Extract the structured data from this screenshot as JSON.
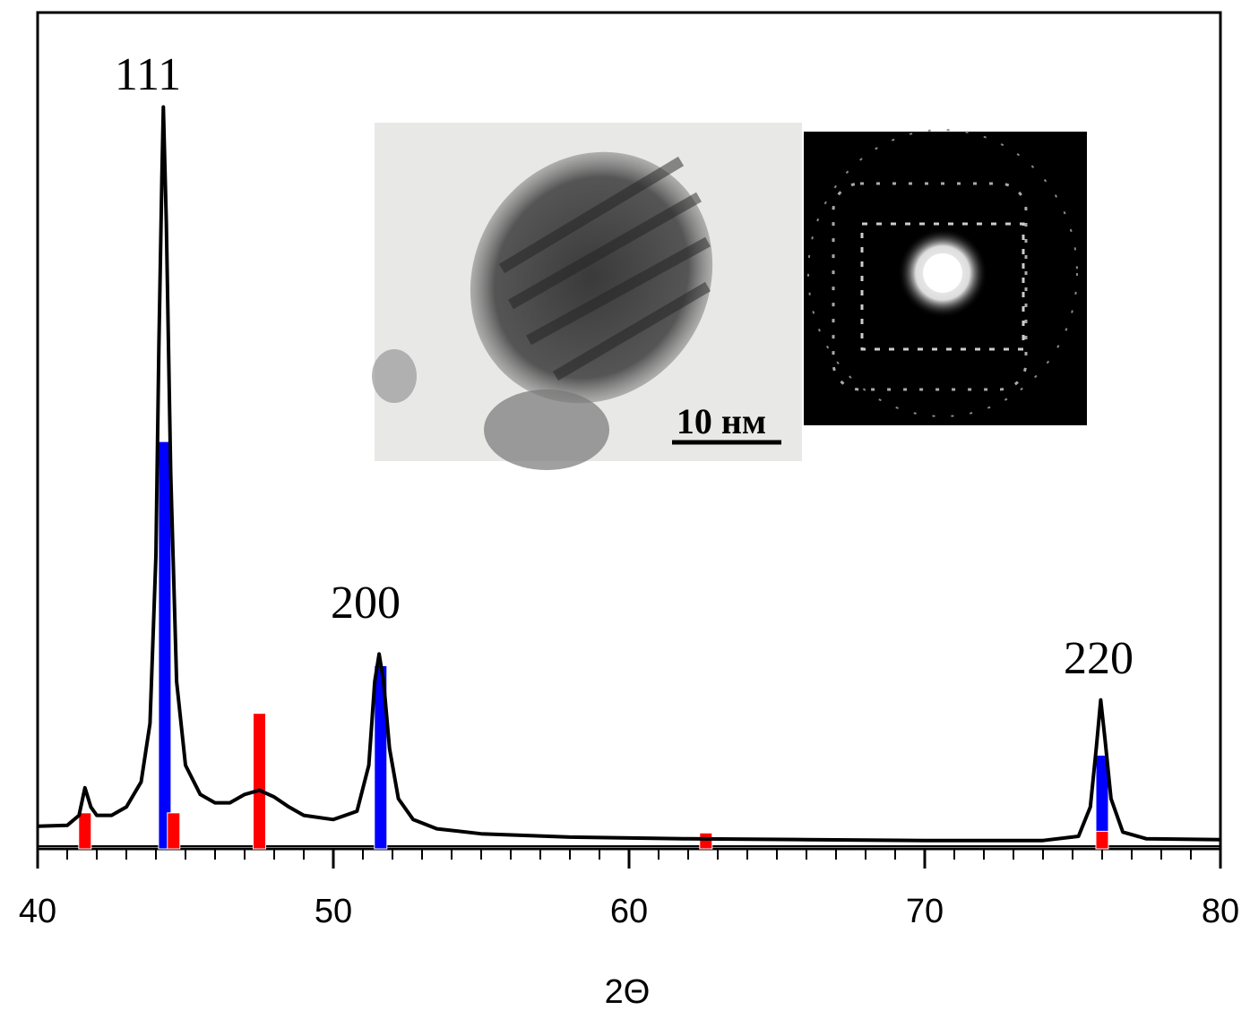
{
  "chart_data": {
    "type": "line",
    "xlabel": "2Θ",
    "annotations": [
      "111",
      "200",
      "220"
    ],
    "inset_label": "10 нм",
    "xlim": [
      40,
      80
    ],
    "xticks": [
      40,
      50,
      60,
      70,
      80
    ],
    "xminor_ticks": [
      41,
      42,
      43,
      44,
      45,
      46,
      47,
      48,
      49,
      51,
      52,
      53,
      54,
      55,
      56,
      57,
      58,
      59,
      61,
      62,
      63,
      64,
      65,
      66,
      67,
      68,
      69,
      71,
      72,
      73,
      74,
      75,
      76,
      77,
      78,
      79
    ],
    "ylim": [
      0,
      100
    ],
    "x": [
      40.0,
      41.0,
      41.4,
      41.6,
      41.8,
      42.0,
      42.5,
      43.0,
      43.5,
      43.8,
      44.0,
      44.1,
      44.2,
      44.25,
      44.35,
      44.5,
      44.7,
      45.0,
      45.5,
      46.0,
      46.5,
      47.0,
      47.5,
      48.0,
      48.5,
      49.0,
      50.0,
      50.8,
      51.2,
      51.4,
      51.55,
      51.7,
      51.9,
      52.2,
      52.7,
      53.5,
      55,
      58,
      62,
      66,
      70,
      74,
      75.2,
      75.6,
      75.8,
      75.95,
      76.1,
      76.3,
      76.7,
      77.5,
      80
    ],
    "series": [
      {
        "color": "#000000",
        "values": [
          2.7,
          2.8,
          4.0,
          7.3,
          5.0,
          4.0,
          4.0,
          5.0,
          8.0,
          15,
          35,
          60,
          80,
          88.7,
          75,
          45,
          20,
          10,
          6.5,
          5.5,
          5.5,
          6.5,
          7.0,
          6.2,
          5.0,
          4.0,
          3.5,
          4.5,
          10,
          20,
          23.3,
          20,
          12,
          6,
          3.5,
          2.4,
          1.8,
          1.4,
          1.2,
          1.1,
          1.0,
          1.0,
          1.5,
          5,
          12,
          17.8,
          13,
          6,
          2,
          1.2,
          1.1
        ]
      }
    ],
    "sticks": [
      {
        "color": "#0000ff",
        "x": [
          44.3,
          51.6,
          76.0
        ],
        "values": [
          48.7,
          21.9,
          11.2
        ]
      },
      {
        "color": "#ff0000",
        "x": [
          41.6,
          44.6,
          47.5,
          62.6,
          76.0
        ],
        "values": [
          4.3,
          4.3,
          16.2,
          1.9,
          2.1
        ]
      }
    ]
  }
}
